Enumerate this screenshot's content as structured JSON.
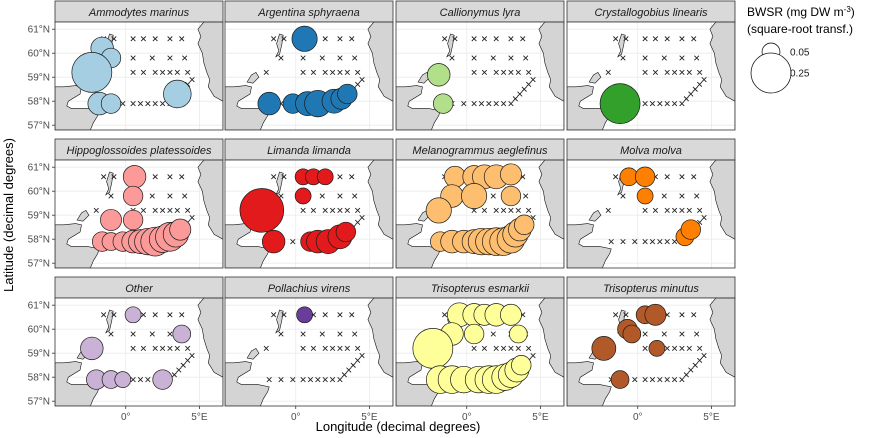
{
  "chart_data": {
    "type": "scatter",
    "xlabel": "Longitude (decimal degrees)",
    "ylabel": "Latitude (decimal degrees)",
    "xlim": [
      -4.8,
      6.6
    ],
    "ylim": [
      56.8,
      61.3
    ],
    "x_ticks": [
      {
        "value": 0,
        "label": "0°"
      },
      {
        "value": 5,
        "label": "5°E"
      }
    ],
    "y_ticks": [
      {
        "value": 57,
        "label": "57°N"
      },
      {
        "value": 58,
        "label": "58°N"
      },
      {
        "value": 59,
        "label": "59°N"
      },
      {
        "value": 60,
        "label": "60°N"
      },
      {
        "value": 61,
        "label": "61°N"
      }
    ],
    "grid": true,
    "legend": {
      "title_line1": "BWSR (mg DW m",
      "title_sup": "-3",
      "title_end": ")",
      "title_line2": "(square-root transf.)",
      "entries": [
        {
          "label": "0.05",
          "value": 0.05
        },
        {
          "label": "0.25",
          "value": 0.25
        }
      ],
      "placement": "right"
    },
    "stations": [
      [
        -1.5,
        60.6
      ],
      [
        -0.8,
        60.6
      ],
      [
        0.5,
        60.6
      ],
      [
        1.2,
        60.6
      ],
      [
        2.0,
        60.6
      ],
      [
        3.0,
        60.6
      ],
      [
        3.8,
        60.6
      ],
      [
        -1.0,
        59.8
      ],
      [
        0.5,
        59.8
      ],
      [
        1.8,
        59.8
      ],
      [
        3.0,
        59.8
      ],
      [
        4.0,
        59.8
      ],
      [
        -2.0,
        59.2
      ],
      [
        0.5,
        59.2
      ],
      [
        1.2,
        59.2
      ],
      [
        2.0,
        59.2
      ],
      [
        2.5,
        59.2
      ],
      [
        3.0,
        59.2
      ],
      [
        3.5,
        59.2
      ],
      [
        4.2,
        59.2
      ],
      [
        -1.8,
        57.9
      ],
      [
        -1.0,
        57.9
      ],
      [
        -0.2,
        57.9
      ],
      [
        0.5,
        57.9
      ],
      [
        1.0,
        57.9
      ],
      [
        1.5,
        57.9
      ],
      [
        2.0,
        57.9
      ],
      [
        2.5,
        57.9
      ],
      [
        3.0,
        57.9
      ],
      [
        3.3,
        58.1
      ],
      [
        3.6,
        58.3
      ],
      [
        3.9,
        58.5
      ],
      [
        4.2,
        58.7
      ],
      [
        4.5,
        58.9
      ]
    ],
    "series": [
      {
        "name": "Ammodytes marinus",
        "color": "#a6cee3",
        "points": [
          [
            -1.6,
            60.2,
            0.08
          ],
          [
            -1.0,
            59.8,
            0.06
          ],
          [
            -2.3,
            59.2,
            0.25
          ],
          [
            -1.8,
            57.9,
            0.08
          ],
          [
            -1.0,
            57.9,
            0.06
          ],
          [
            3.5,
            58.3,
            0.12
          ]
        ]
      },
      {
        "name": "Argentina sphyraena",
        "color": "#1f78b4",
        "points": [
          [
            0.6,
            60.6,
            0.1
          ],
          [
            -1.8,
            57.9,
            0.08
          ],
          [
            -0.2,
            57.9,
            0.06
          ],
          [
            0.8,
            57.9,
            0.09
          ],
          [
            1.5,
            57.9,
            0.11
          ],
          [
            2.6,
            58.0,
            0.09
          ],
          [
            3.1,
            58.1,
            0.07
          ],
          [
            3.5,
            58.3,
            0.06
          ]
        ]
      },
      {
        "name": "Callionymus lyra",
        "color": "#b2df8a",
        "points": [
          [
            -1.9,
            59.1,
            0.08
          ],
          [
            -1.6,
            57.9,
            0.06
          ]
        ]
      },
      {
        "name": "Crystallogobius linearis",
        "color": "#33a02c",
        "points": [
          [
            -1.2,
            57.9,
            0.25
          ]
        ]
      },
      {
        "name": "Hippoglossoides platessoides",
        "color": "#fb9a99",
        "points": [
          [
            0.6,
            60.6,
            0.08
          ],
          [
            0.5,
            59.8,
            0.06
          ],
          [
            -1.0,
            58.8,
            0.07
          ],
          [
            0.5,
            58.8,
            0.06
          ],
          [
            -1.6,
            57.9,
            0.06
          ],
          [
            -1.0,
            57.9,
            0.05
          ],
          [
            -0.2,
            57.9,
            0.06
          ],
          [
            0.5,
            57.9,
            0.08
          ],
          [
            1.0,
            57.9,
            0.09
          ],
          [
            1.5,
            57.9,
            0.11
          ],
          [
            2.0,
            57.9,
            0.13
          ],
          [
            2.5,
            58.0,
            0.11
          ],
          [
            3.0,
            58.1,
            0.13
          ],
          [
            3.4,
            58.2,
            0.1
          ],
          [
            3.7,
            58.4,
            0.07
          ]
        ]
      },
      {
        "name": "Limanda limanda",
        "color": "#e31a1c",
        "points": [
          [
            0.5,
            60.6,
            0.04
          ],
          [
            1.2,
            60.6,
            0.04
          ],
          [
            2.0,
            60.6,
            0.04
          ],
          [
            0.5,
            59.8,
            0.04
          ],
          [
            -2.3,
            59.2,
            0.3
          ],
          [
            -1.5,
            57.9,
            0.08
          ],
          [
            1.0,
            57.9,
            0.06
          ],
          [
            1.5,
            57.9,
            0.08
          ],
          [
            2.2,
            57.9,
            0.09
          ],
          [
            3.0,
            58.1,
            0.09
          ],
          [
            3.4,
            58.3,
            0.06
          ]
        ]
      },
      {
        "name": "Melanogrammus aeglefinus",
        "color": "#fdbf6f",
        "points": [
          [
            -0.8,
            60.6,
            0.07
          ],
          [
            0.5,
            60.6,
            0.08
          ],
          [
            1.2,
            60.6,
            0.09
          ],
          [
            2.0,
            60.6,
            0.09
          ],
          [
            3.0,
            60.7,
            0.07
          ],
          [
            -1.0,
            59.8,
            0.08
          ],
          [
            0.5,
            59.8,
            0.1
          ],
          [
            3.0,
            59.8,
            0.06
          ],
          [
            -1.9,
            59.2,
            0.1
          ],
          [
            -1.8,
            57.9,
            0.06
          ],
          [
            -1.0,
            57.9,
            0.08
          ],
          [
            -0.2,
            57.9,
            0.08
          ],
          [
            0.5,
            57.9,
            0.09
          ],
          [
            1.0,
            57.9,
            0.11
          ],
          [
            1.5,
            57.9,
            0.11
          ],
          [
            2.0,
            57.9,
            0.12
          ],
          [
            2.5,
            57.9,
            0.12
          ],
          [
            3.0,
            58.0,
            0.12
          ],
          [
            3.3,
            58.2,
            0.1
          ],
          [
            3.6,
            58.4,
            0.08
          ],
          [
            3.9,
            58.6,
            0.06
          ]
        ]
      },
      {
        "name": "Molva molva",
        "color": "#ff7f00",
        "points": [
          [
            -0.6,
            60.6,
            0.05
          ],
          [
            0.5,
            60.6,
            0.06
          ],
          [
            0.5,
            59.8,
            0.04
          ],
          [
            3.2,
            58.1,
            0.05
          ],
          [
            3.6,
            58.4,
            0.06
          ]
        ]
      },
      {
        "name": "Other",
        "color": "#cab2d6",
        "points": [
          [
            0.5,
            60.6,
            0.04
          ],
          [
            3.8,
            59.8,
            0.05
          ],
          [
            -2.3,
            59.2,
            0.08
          ],
          [
            -2.0,
            57.9,
            0.06
          ],
          [
            -1.0,
            57.9,
            0.05
          ],
          [
            -0.2,
            57.9,
            0.04
          ],
          [
            2.5,
            57.9,
            0.06
          ]
        ]
      },
      {
        "name": "Pollachius virens",
        "color": "#6a3d9a",
        "points": [
          [
            0.6,
            60.6,
            0.04
          ]
        ]
      },
      {
        "name": "Trisopterus esmarkii",
        "color": "#ffff99",
        "points": [
          [
            -0.5,
            60.6,
            0.09
          ],
          [
            0.5,
            60.6,
            0.08
          ],
          [
            1.2,
            60.6,
            0.07
          ],
          [
            2.0,
            60.6,
            0.08
          ],
          [
            3.0,
            60.6,
            0.07
          ],
          [
            -1.0,
            59.8,
            0.08
          ],
          [
            0.5,
            59.8,
            0.06
          ],
          [
            3.5,
            59.8,
            0.05
          ],
          [
            -2.3,
            59.2,
            0.25
          ],
          [
            -1.8,
            57.9,
            0.12
          ],
          [
            -1.0,
            57.9,
            0.12
          ],
          [
            -0.2,
            57.9,
            0.11
          ],
          [
            0.8,
            57.9,
            0.11
          ],
          [
            1.5,
            57.9,
            0.12
          ],
          [
            2.0,
            57.9,
            0.12
          ],
          [
            2.6,
            58.0,
            0.11
          ],
          [
            3.0,
            58.1,
            0.1
          ],
          [
            3.4,
            58.3,
            0.09
          ],
          [
            3.7,
            58.5,
            0.06
          ]
        ]
      },
      {
        "name": "Trisopterus minutus",
        "color": "#b15928",
        "points": [
          [
            0.5,
            60.6,
            0.05
          ],
          [
            1.2,
            60.6,
            0.07
          ],
          [
            -0.7,
            60.0,
            0.06
          ],
          [
            -0.4,
            59.8,
            0.05
          ],
          [
            1.3,
            59.2,
            0.04
          ],
          [
            -2.3,
            59.2,
            0.09
          ],
          [
            -1.2,
            57.9,
            0.05
          ]
        ]
      }
    ]
  }
}
